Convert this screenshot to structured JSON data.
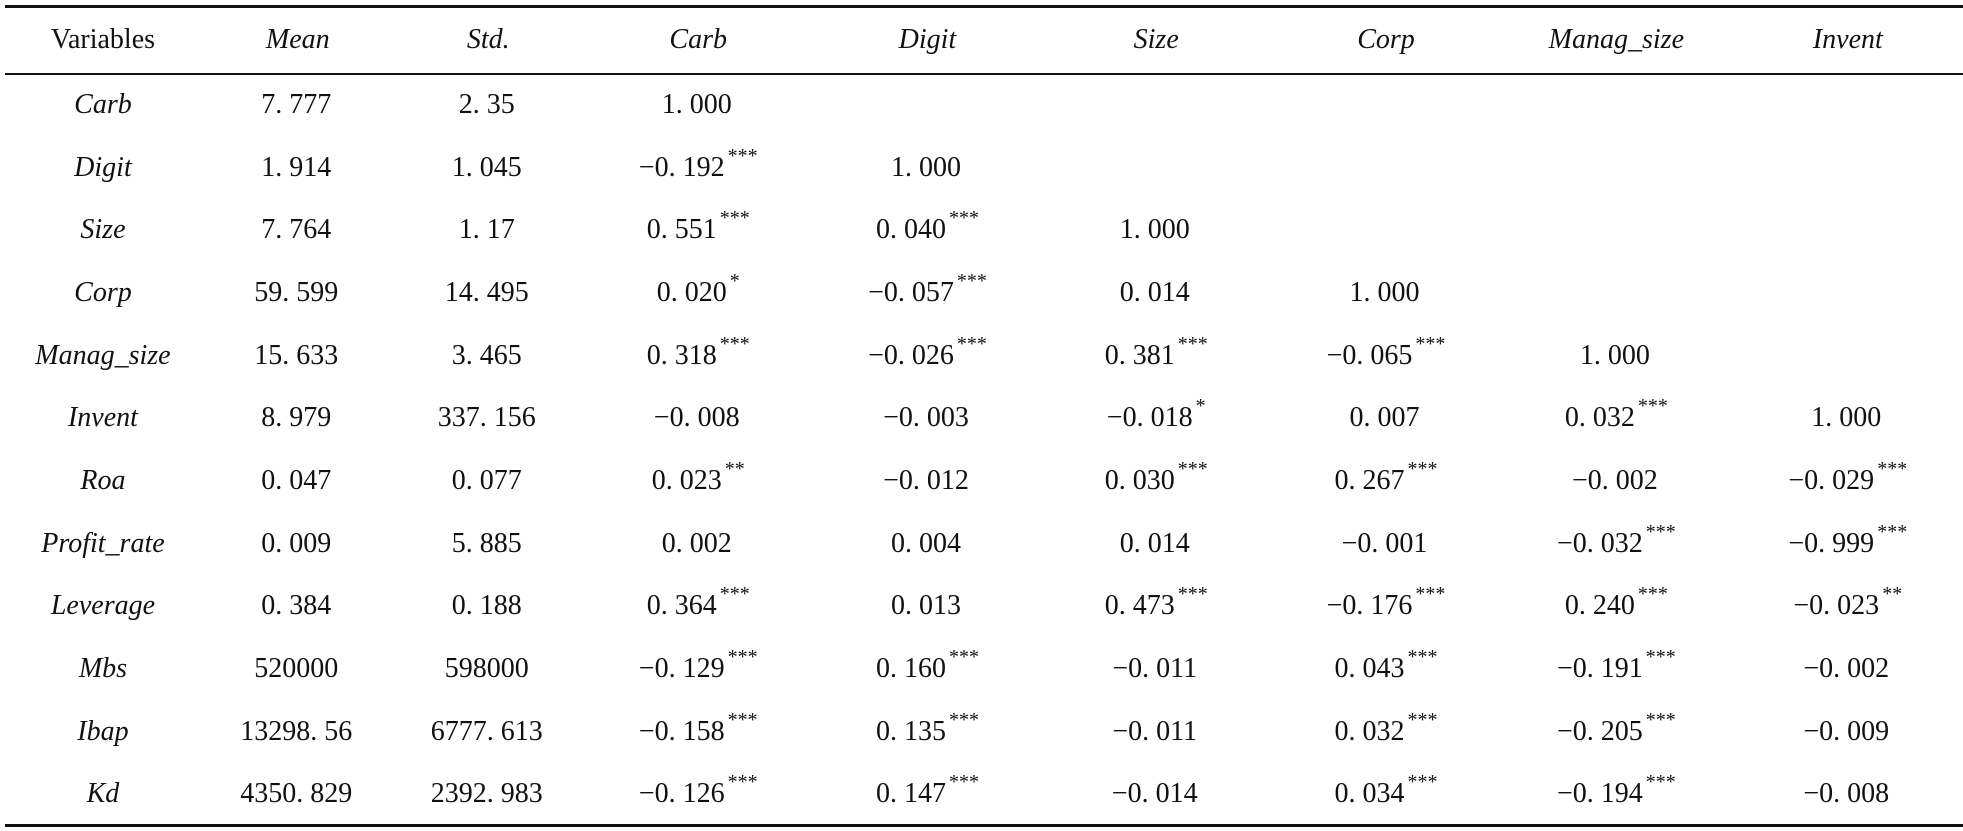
{
  "table": {
    "headers": [
      "Variables",
      "Mean",
      "Std.",
      "Carb",
      "Digit",
      "Size",
      "Corp",
      "Manag_size",
      "Invent"
    ],
    "rows": [
      {
        "variable": "Carb",
        "cells": [
          {
            "v": "7. 777",
            "s": ""
          },
          {
            "v": "2. 35",
            "s": ""
          },
          {
            "v": "1. 000",
            "s": ""
          },
          {
            "v": "",
            "s": ""
          },
          {
            "v": "",
            "s": ""
          },
          {
            "v": "",
            "s": ""
          },
          {
            "v": "",
            "s": ""
          },
          {
            "v": "",
            "s": ""
          }
        ]
      },
      {
        "variable": "Digit",
        "cells": [
          {
            "v": "1. 914",
            "s": ""
          },
          {
            "v": "1. 045",
            "s": ""
          },
          {
            "v": "−0. 192",
            "s": "***"
          },
          {
            "v": "1. 000",
            "s": ""
          },
          {
            "v": "",
            "s": ""
          },
          {
            "v": "",
            "s": ""
          },
          {
            "v": "",
            "s": ""
          },
          {
            "v": "",
            "s": ""
          }
        ]
      },
      {
        "variable": "Size",
        "cells": [
          {
            "v": "7. 764",
            "s": ""
          },
          {
            "v": "1. 17",
            "s": ""
          },
          {
            "v": "0. 551",
            "s": "***"
          },
          {
            "v": "0. 040",
            "s": "***"
          },
          {
            "v": "1. 000",
            "s": ""
          },
          {
            "v": "",
            "s": ""
          },
          {
            "v": "",
            "s": ""
          },
          {
            "v": "",
            "s": ""
          }
        ]
      },
      {
        "variable": "Corp",
        "cells": [
          {
            "v": "59. 599",
            "s": ""
          },
          {
            "v": "14. 495",
            "s": ""
          },
          {
            "v": "0. 020",
            "s": "*"
          },
          {
            "v": "−0. 057",
            "s": "***"
          },
          {
            "v": "0. 014",
            "s": ""
          },
          {
            "v": "1. 000",
            "s": ""
          },
          {
            "v": "",
            "s": ""
          },
          {
            "v": "",
            "s": ""
          }
        ]
      },
      {
        "variable": "Manag_size",
        "cells": [
          {
            "v": "15. 633",
            "s": ""
          },
          {
            "v": "3. 465",
            "s": ""
          },
          {
            "v": "0. 318",
            "s": "***"
          },
          {
            "v": "−0. 026",
            "s": "***"
          },
          {
            "v": "0. 381",
            "s": "***"
          },
          {
            "v": "−0. 065",
            "s": "***"
          },
          {
            "v": "1. 000",
            "s": ""
          },
          {
            "v": "",
            "s": ""
          }
        ]
      },
      {
        "variable": "Invent",
        "cells": [
          {
            "v": "8. 979",
            "s": ""
          },
          {
            "v": "337. 156",
            "s": ""
          },
          {
            "v": "−0. 008",
            "s": ""
          },
          {
            "v": "−0. 003",
            "s": ""
          },
          {
            "v": "−0. 018",
            "s": "*"
          },
          {
            "v": "0. 007",
            "s": ""
          },
          {
            "v": "0. 032",
            "s": "***"
          },
          {
            "v": "1. 000",
            "s": ""
          }
        ]
      },
      {
        "variable": "Roa",
        "cells": [
          {
            "v": "0. 047",
            "s": ""
          },
          {
            "v": "0. 077",
            "s": ""
          },
          {
            "v": "0. 023",
            "s": "**"
          },
          {
            "v": "−0. 012",
            "s": ""
          },
          {
            "v": "0. 030",
            "s": "***"
          },
          {
            "v": "0. 267",
            "s": "***"
          },
          {
            "v": "−0. 002",
            "s": ""
          },
          {
            "v": "−0. 029",
            "s": "***"
          }
        ]
      },
      {
        "variable": "Profit_rate",
        "cells": [
          {
            "v": "0. 009",
            "s": ""
          },
          {
            "v": "5. 885",
            "s": ""
          },
          {
            "v": "0. 002",
            "s": ""
          },
          {
            "v": "0. 004",
            "s": ""
          },
          {
            "v": "0. 014",
            "s": ""
          },
          {
            "v": "−0. 001",
            "s": ""
          },
          {
            "v": "−0. 032",
            "s": "***"
          },
          {
            "v": "−0. 999",
            "s": "***"
          }
        ]
      },
      {
        "variable": "Leverage",
        "cells": [
          {
            "v": "0. 384",
            "s": ""
          },
          {
            "v": "0. 188",
            "s": ""
          },
          {
            "v": "0. 364",
            "s": "***"
          },
          {
            "v": "0. 013",
            "s": ""
          },
          {
            "v": "0. 473",
            "s": "***"
          },
          {
            "v": "−0. 176",
            "s": "***"
          },
          {
            "v": "0. 240",
            "s": "***"
          },
          {
            "v": "−0. 023",
            "s": "**"
          }
        ]
      },
      {
        "variable": "Mbs",
        "cells": [
          {
            "v": "520000",
            "s": ""
          },
          {
            "v": "598000",
            "s": ""
          },
          {
            "v": "−0. 129",
            "s": "***"
          },
          {
            "v": "0. 160",
            "s": "***"
          },
          {
            "v": "−0. 011",
            "s": ""
          },
          {
            "v": "0. 043",
            "s": "***"
          },
          {
            "v": "−0. 191",
            "s": "***"
          },
          {
            "v": "−0. 002",
            "s": ""
          }
        ]
      },
      {
        "variable": "Ibap",
        "cells": [
          {
            "v": "13298. 56",
            "s": ""
          },
          {
            "v": "6777. 613",
            "s": ""
          },
          {
            "v": "−0. 158",
            "s": "***"
          },
          {
            "v": "0. 135",
            "s": "***"
          },
          {
            "v": "−0. 011",
            "s": ""
          },
          {
            "v": "0. 032",
            "s": "***"
          },
          {
            "v": "−0. 205",
            "s": "***"
          },
          {
            "v": "−0. 009",
            "s": ""
          }
        ]
      },
      {
        "variable": "Kd",
        "cells": [
          {
            "v": "4350. 829",
            "s": ""
          },
          {
            "v": "2392. 983",
            "s": ""
          },
          {
            "v": "−0. 126",
            "s": "***"
          },
          {
            "v": "0. 147",
            "s": "***"
          },
          {
            "v": "−0. 014",
            "s": ""
          },
          {
            "v": "0. 034",
            "s": "***"
          },
          {
            "v": "−0. 194",
            "s": "***"
          },
          {
            "v": "−0. 008",
            "s": ""
          }
        ]
      }
    ]
  }
}
